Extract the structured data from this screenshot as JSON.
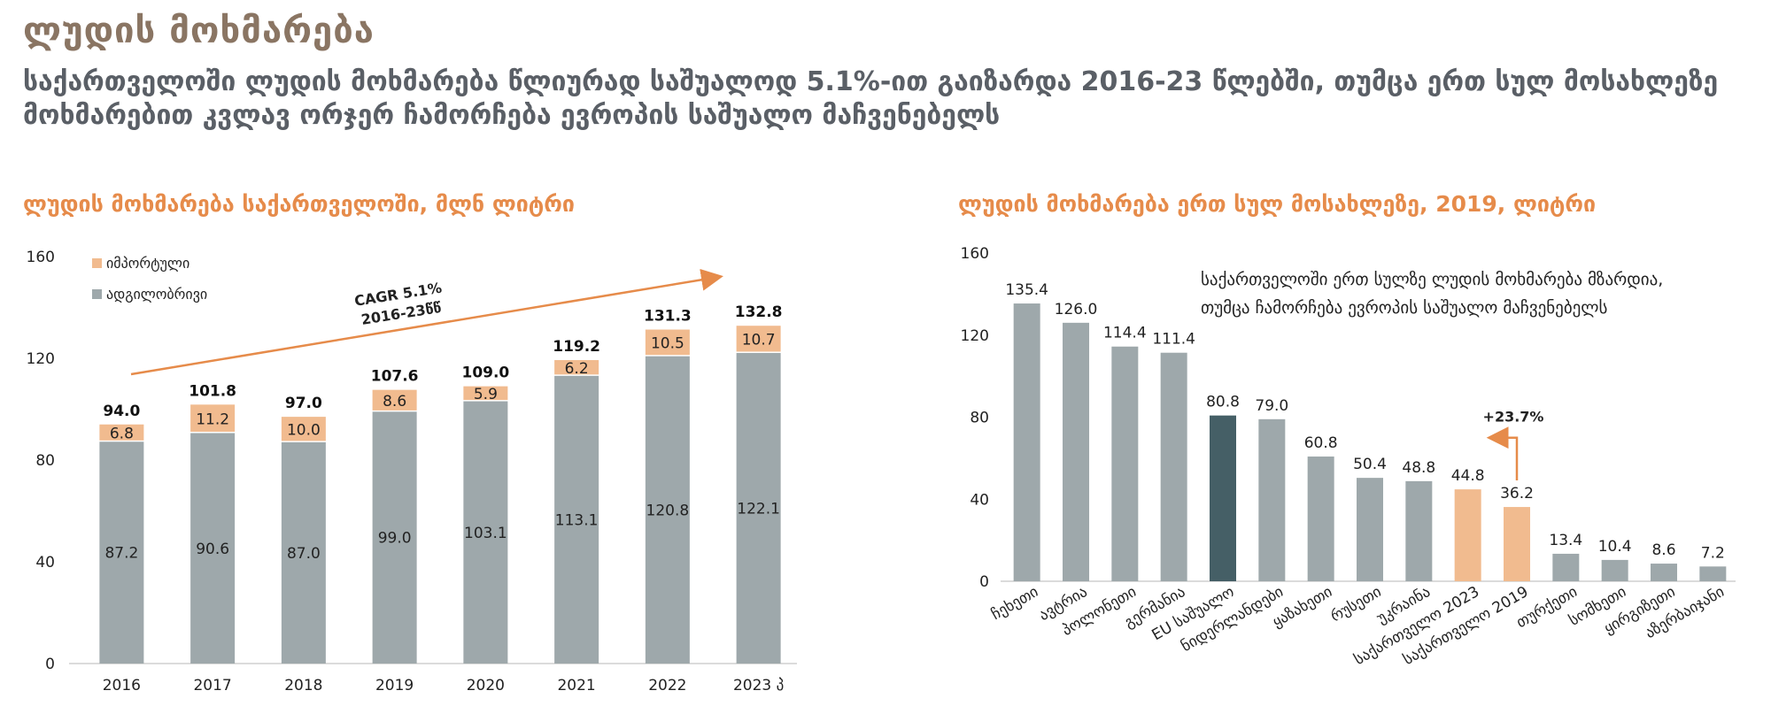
{
  "header": {
    "title": "ლუდის მოხმარება",
    "subtitle": "საქართველოში ლუდის მოხმარება წლიურად საშუალოდ 5.1%-ით გაიზარდა 2016-23 წლებში, თუმცა ერთ სულ მოსახლეზე მოხმარებით კვლავ ორჯერ ჩამორჩება ევროპის საშუალო მაჩვენებელს"
  },
  "chart_data": [
    {
      "type": "bar",
      "stacked": true,
      "title": "ლუდის მოხმარება საქართველოში, მლნ ლიტრი",
      "categories": [
        "2016",
        "2017",
        "2018",
        "2019",
        "2020",
        "2021",
        "2022",
        "2023 პ"
      ],
      "series": [
        {
          "name": "ადგილობრივი",
          "values": [
            87.2,
            90.6,
            87.0,
            99.0,
            103.1,
            113.1,
            120.8,
            122.1
          ],
          "color": "#9ea8ab"
        },
        {
          "name": "იმპორტული",
          "values": [
            6.8,
            11.2,
            10.0,
            8.6,
            5.9,
            6.2,
            10.5,
            10.7
          ],
          "color": "#f1bb8f"
        }
      ],
      "totals": [
        "94.0",
        "101.8",
        "97.0",
        "107.6",
        "109.0",
        "119.2",
        "131.3",
        "132.8"
      ],
      "yticks": [
        0,
        40,
        80,
        120,
        160
      ],
      "ylim": [
        0,
        160
      ],
      "annotation": {
        "line1": "CAGR 5.1%",
        "line2": "2016-23წწ"
      },
      "legend": "top-left"
    },
    {
      "type": "bar",
      "title": "ლუდის მოხმარება ერთ სულ მოსახლეზე, 2019, ლიტრი",
      "categories": [
        "ჩეხეთი",
        "ავტრია",
        "პოლონეთი",
        "გერმანია",
        "EU საშუალო",
        "ნიდერლანდები",
        "ყაზახეთი",
        "რუსეთი",
        "უკრაინა",
        "საქართველო 2023",
        "საქართველო 2019",
        "თურქეთი",
        "სომხეთი",
        "ყირგიზეთი",
        "აზერბაიჯანი"
      ],
      "values": [
        135.4,
        126.0,
        114.4,
        111.4,
        80.8,
        79.0,
        60.8,
        50.4,
        48.8,
        44.8,
        36.2,
        13.4,
        10.4,
        8.6,
        7.2
      ],
      "value_labels": [
        "135.4",
        "126.0",
        "114.4",
        "111.4",
        "80.8",
        "79.0",
        "60.8",
        "50.4",
        "48.8",
        "44.8",
        "36.2",
        "13.4",
        "10.4",
        "8.6",
        "7.2"
      ],
      "colors": {
        "default": "#9ea8ab",
        "eu": "#455f66",
        "georgia": "#f1bb8f"
      },
      "yticks": [
        0,
        40,
        80,
        120,
        160
      ],
      "ylim": [
        0,
        160
      ],
      "note_line1": "საქართველოში ერთ სულზე ლუდის მოხმარება მზარდია,",
      "note_line2": "თუმცა ჩამორჩება ევროპის საშუალო მაჩვენებელს",
      "growth_label": "+23.7%"
    }
  ]
}
